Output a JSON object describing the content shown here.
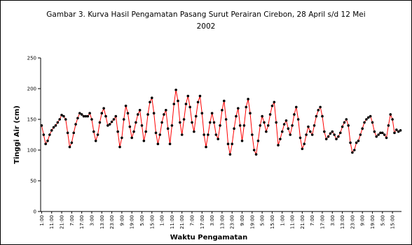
{
  "chart_data": {
    "type": "line",
    "title": "Gambar 3. Kurva Hasil Pengamatan Pasang Surut Perairan Cirebon, 28 April s/d 12 Mei 2002",
    "x_label": "Waktu Pengamatan",
    "y_label": "Tinggi Air (cm)",
    "categories": [
      "1:00",
      null,
      null,
      null,
      null,
      "11:00",
      null,
      null,
      null,
      null,
      "21:00",
      null,
      null,
      null,
      null,
      "7:00",
      null,
      null,
      null,
      null,
      "17:00",
      null,
      null,
      null,
      null,
      "3:00",
      null,
      null,
      null,
      null,
      "13:00",
      null,
      null,
      null,
      null,
      "23:00",
      null,
      null,
      null,
      null,
      "9:00",
      null,
      null,
      null,
      null,
      "19:00",
      null,
      null,
      null,
      null,
      "5:00",
      null,
      null,
      null,
      null,
      "15:00",
      null,
      null,
      null,
      null,
      "1:00",
      null,
      null,
      null,
      null,
      "11:00",
      null,
      null,
      null,
      null,
      "21:00",
      null,
      null,
      null,
      null,
      "7:00",
      null,
      null,
      null,
      null,
      "17:00",
      null,
      null,
      null,
      null,
      "3:00",
      null,
      null,
      null,
      null,
      "13:00",
      null,
      null,
      null,
      null,
      "23:00",
      null,
      null,
      null,
      null,
      "9:00",
      null,
      null,
      null,
      null,
      "19:00",
      null,
      null,
      null,
      null,
      "5:00",
      null,
      null,
      null,
      null,
      "15:00",
      null,
      null,
      null,
      null,
      "1:00",
      null,
      null,
      null,
      null,
      "11:00",
      null,
      null,
      null,
      null,
      "21:00",
      null,
      null,
      null,
      null,
      "7:00",
      null,
      null,
      null,
      null,
      "17:00",
      null,
      null,
      null,
      null,
      "3:00",
      null,
      null,
      null,
      null,
      "13:00",
      null,
      null,
      null,
      null,
      "23:00",
      null,
      null,
      null,
      null,
      "9:00",
      null,
      null,
      null,
      null,
      "19:00",
      null,
      null,
      null,
      null,
      "5:00",
      null,
      null,
      null,
      null,
      "15:00",
      null,
      null,
      null,
      null
    ],
    "values": [
      140,
      125,
      110,
      115,
      125,
      132,
      137,
      140,
      145,
      150,
      157,
      155,
      150,
      128,
      105,
      112,
      128,
      142,
      152,
      160,
      158,
      155,
      155,
      155,
      160,
      150,
      130,
      115,
      125,
      145,
      160,
      168,
      155,
      140,
      142,
      146,
      150,
      155,
      130,
      105,
      120,
      150,
      172,
      160,
      138,
      120,
      130,
      145,
      158,
      165,
      140,
      115,
      130,
      158,
      178,
      185,
      160,
      128,
      110,
      125,
      145,
      158,
      165,
      135,
      110,
      140,
      175,
      198,
      180,
      145,
      125,
      150,
      175,
      188,
      170,
      145,
      130,
      155,
      178,
      188,
      160,
      125,
      105,
      125,
      145,
      160,
      145,
      125,
      118,
      140,
      165,
      180,
      150,
      110,
      93,
      110,
      135,
      155,
      168,
      140,
      115,
      140,
      170,
      183,
      160,
      125,
      100,
      93,
      115,
      140,
      155,
      145,
      130,
      140,
      158,
      172,
      178,
      145,
      108,
      118,
      130,
      142,
      148,
      135,
      125,
      140,
      158,
      170,
      150,
      120,
      102,
      110,
      125,
      138,
      130,
      125,
      140,
      155,
      165,
      170,
      155,
      130,
      118,
      122,
      127,
      130,
      125,
      118,
      122,
      128,
      138,
      145,
      150,
      140,
      112,
      96,
      100,
      112,
      115,
      125,
      135,
      145,
      150,
      153,
      155,
      145,
      130,
      122,
      125,
      128,
      128,
      125,
      120,
      140,
      158,
      150,
      128,
      133,
      130,
      132
    ],
    "line_color": "#ff0000",
    "marker_color": "#000000",
    "ylim": [
      0,
      250
    ],
    "yticks": [
      0,
      50,
      100,
      150,
      200,
      250
    ],
    "grid": false
  }
}
